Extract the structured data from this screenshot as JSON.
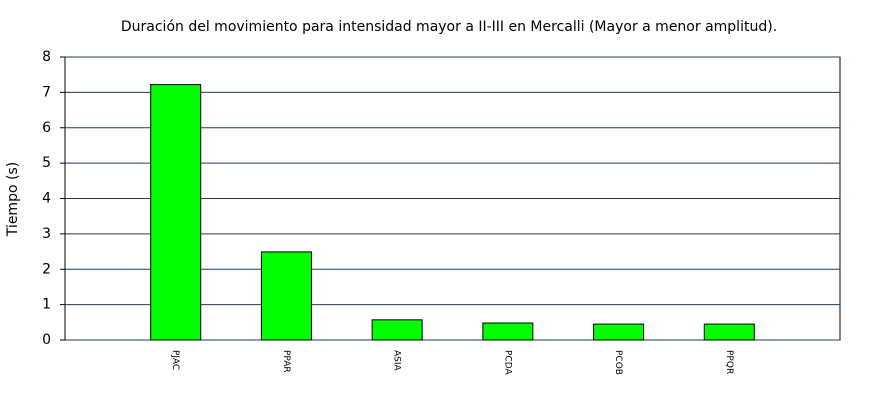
{
  "chart_data": {
    "type": "bar",
    "title": "Duración del movimiento para intensidad mayor a II-III en Mercalli (Mayor a menor amplitud).",
    "y_label": "Tiempo (s)",
    "categories": [
      "PJAC",
      "PPAR",
      "ASIA",
      "PCDA",
      "PCOB",
      "PPQR"
    ],
    "values": [
      7.22,
      2.49,
      0.57,
      0.48,
      0.45,
      0.45
    ],
    "color": "#00ff00",
    "ylim": [
      0,
      8
    ],
    "yticks": [
      0,
      1,
      2,
      3,
      4,
      5,
      6,
      7,
      8
    ],
    "grid": true
  }
}
